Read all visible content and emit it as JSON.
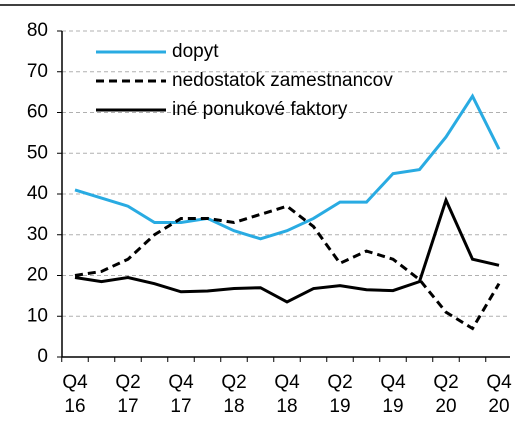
{
  "chart_data": {
    "type": "line",
    "categories": [
      "Q4 16",
      null,
      "Q2 17",
      null,
      "Q4 17",
      null,
      "Q2 18",
      null,
      "Q4 18",
      null,
      "Q2 19",
      null,
      "Q4 19",
      null,
      "Q2 20",
      null,
      "Q4 20"
    ],
    "series": [
      {
        "name": "dopyt",
        "color": "#29abe2",
        "dash": "solid",
        "values": [
          41,
          39,
          37,
          33,
          33,
          34,
          31,
          29,
          31,
          34,
          38,
          38,
          45,
          46,
          54,
          64,
          51
        ]
      },
      {
        "name": "nedostatok zamestnancov",
        "color": "#000000",
        "dash": "dashed",
        "values": [
          20,
          21,
          24,
          30,
          34,
          34,
          33,
          35,
          37,
          32,
          23,
          26,
          24,
          19,
          11,
          7,
          18
        ]
      },
      {
        "name": "iné ponukové faktory",
        "color": "#000000",
        "dash": "solid",
        "values": [
          19.5,
          18.5,
          19.5,
          18,
          16,
          16.2,
          16.8,
          17,
          13.5,
          16.8,
          17.5,
          16.5,
          16.3,
          18.5,
          38.5,
          24,
          22.5
        ]
      }
    ],
    "ylim": [
      0,
      80
    ],
    "yticks": [
      0,
      10,
      20,
      30,
      40,
      50,
      60,
      70,
      80
    ],
    "grid": true,
    "legend": "top-left"
  }
}
